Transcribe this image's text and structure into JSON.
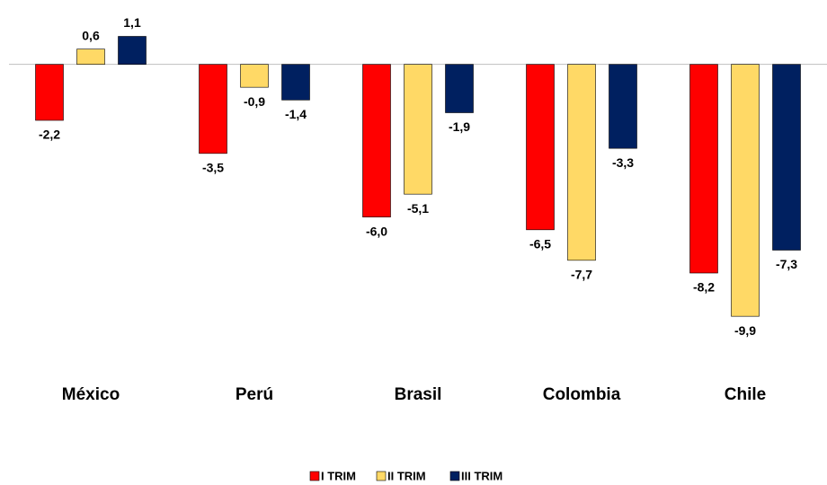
{
  "chart_data": {
    "type": "bar",
    "categories": [
      "México",
      "Perú",
      "Brasil",
      "Colombia",
      "Chile"
    ],
    "series": [
      {
        "name": "I TRIM",
        "color": "#ff0000",
        "values": [
          -2.2,
          -3.5,
          -6.0,
          -6.5,
          -8.2
        ],
        "value_labels": [
          "-2,2",
          "-3,5",
          "-6,0",
          "-6,5",
          "-8,2"
        ]
      },
      {
        "name": "II TRIM",
        "color": "#ffd966",
        "values": [
          0.6,
          -0.9,
          -5.1,
          -7.7,
          -9.9
        ],
        "value_labels": [
          "0,6",
          "-0,9",
          "-5,1",
          "-7,7",
          "-9,9"
        ]
      },
      {
        "name": "III TRIM",
        "color": "#002060",
        "values": [
          1.1,
          -1.4,
          -1.9,
          -3.3,
          -7.3
        ],
        "value_labels": [
          "1,1",
          "-1,4",
          "-1,9",
          "-3,3",
          "-7,3"
        ]
      }
    ],
    "ylim": [
      -10,
      2
    ],
    "legend": "bottom"
  }
}
